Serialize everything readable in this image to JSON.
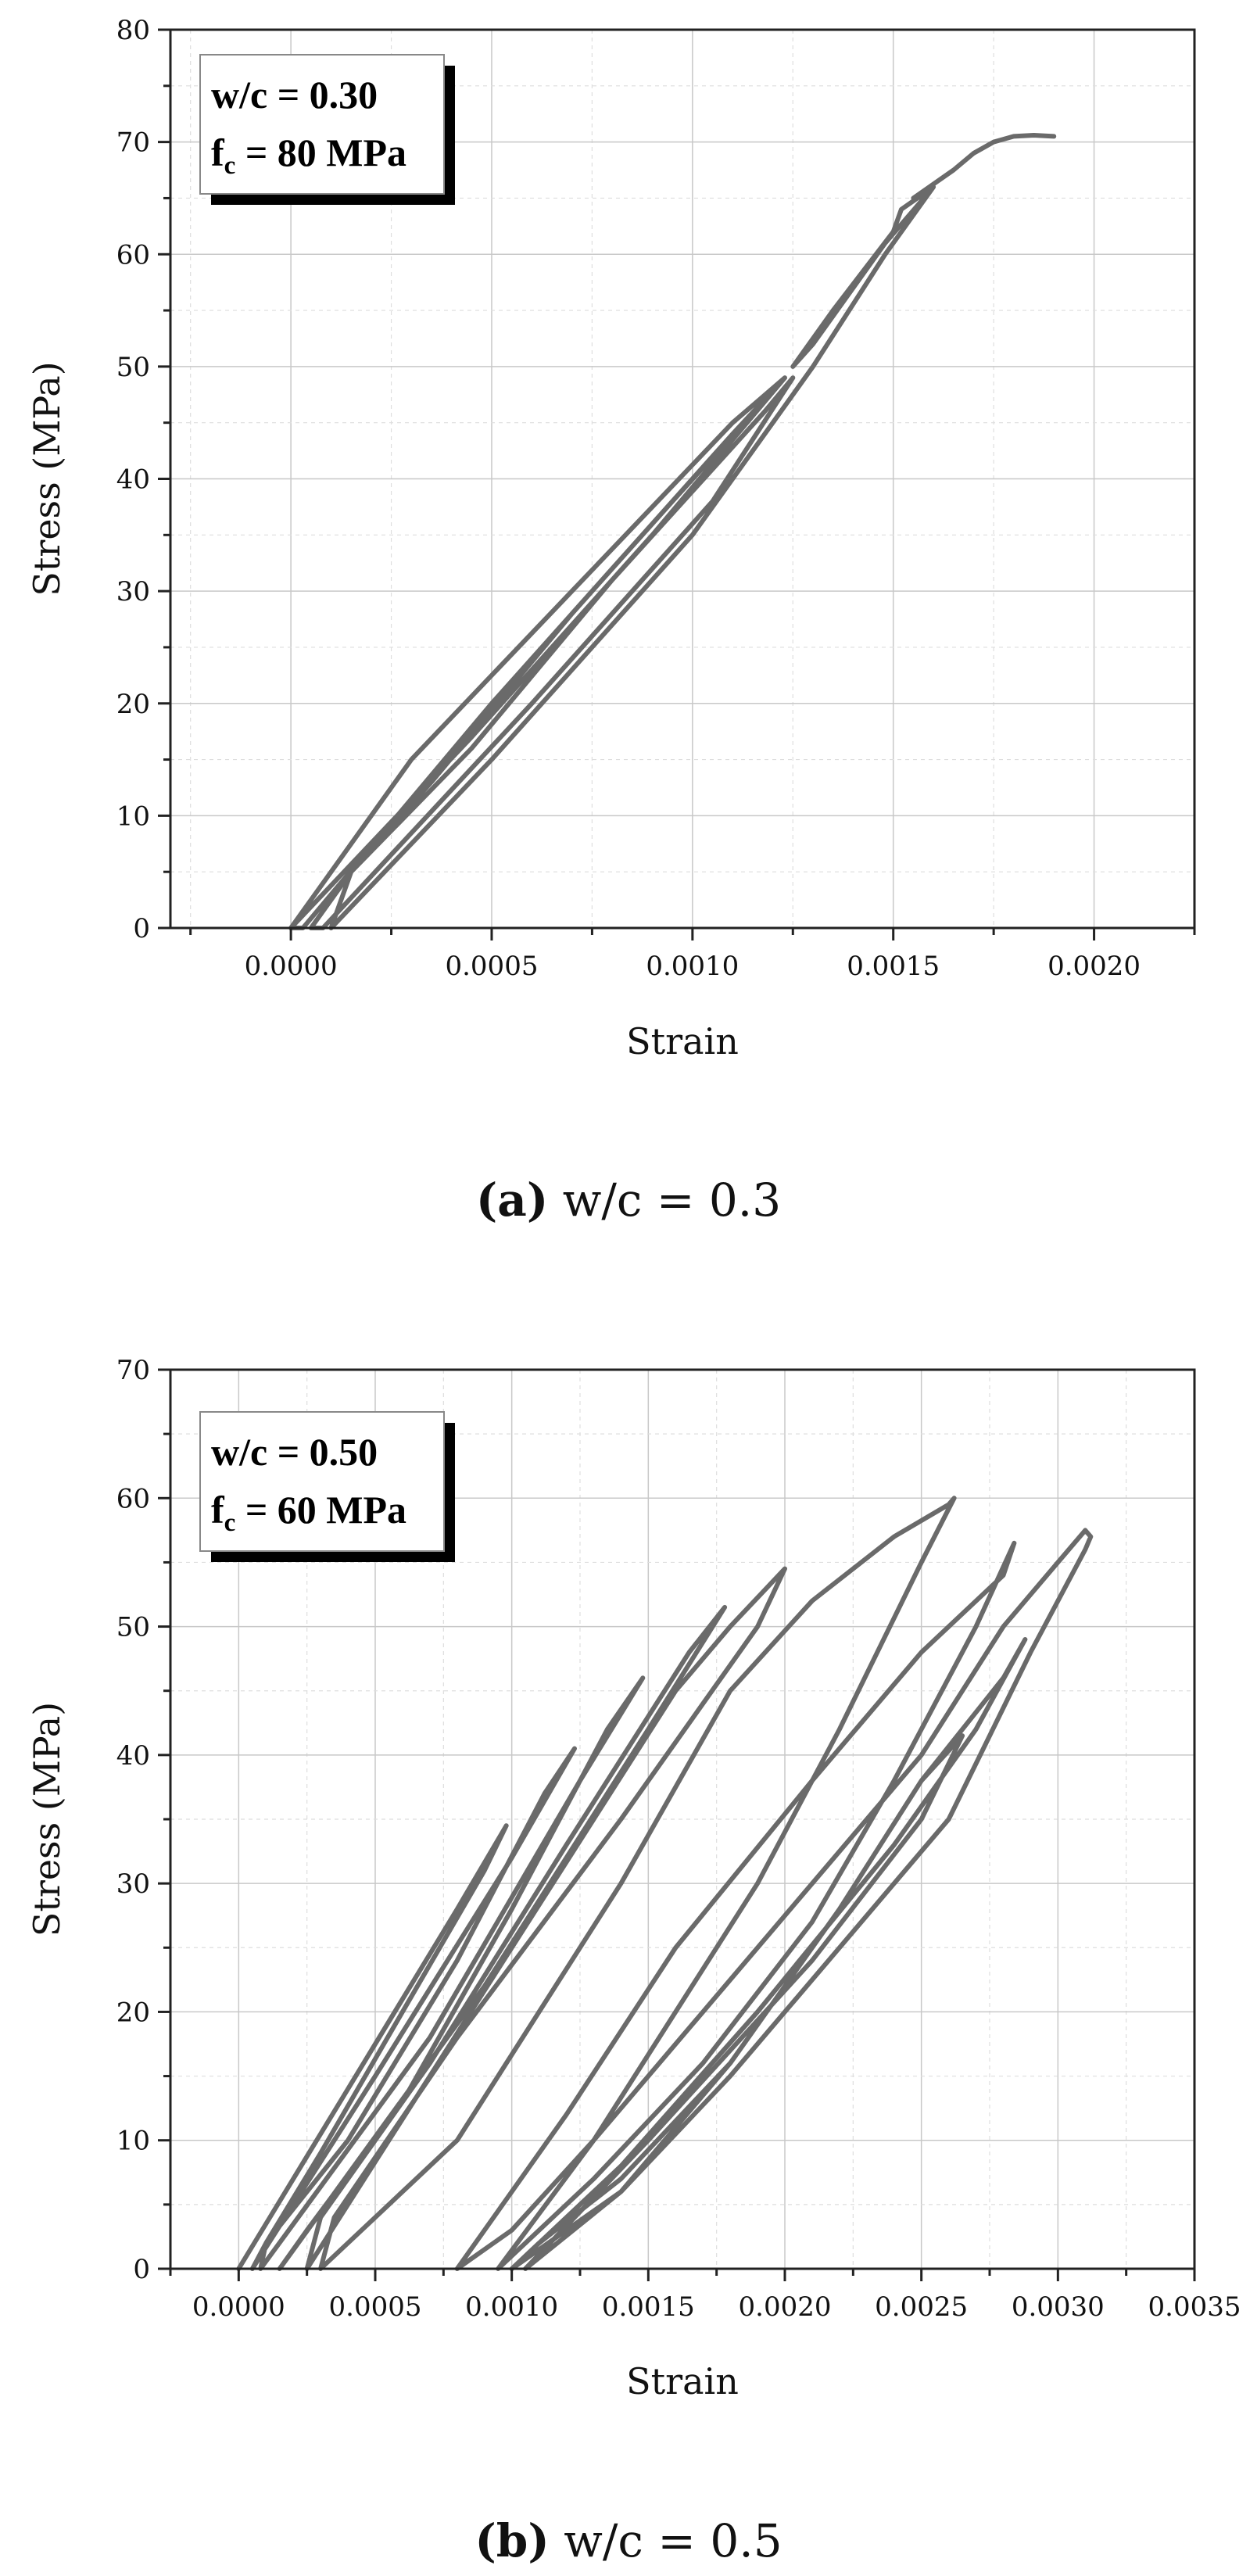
{
  "chart_data": [
    {
      "type": "line",
      "title": "",
      "xlabel": "Strain",
      "ylabel": "Stress (MPa)",
      "xlim": [
        -0.0003,
        0.00225
      ],
      "ylim": [
        0,
        80
      ],
      "xticks": [
        0.0,
        0.0005,
        0.001,
        0.0015,
        0.002
      ],
      "xtick_labels": [
        "0.0000",
        "0.0005",
        "0.0010",
        "0.0015",
        "0.0020"
      ],
      "yticks": [
        0,
        10,
        20,
        30,
        40,
        50,
        60,
        70,
        80
      ],
      "ytick_labels": [
        "0",
        "10",
        "20",
        "30",
        "40",
        "50",
        "60",
        "70",
        "80"
      ],
      "grid": true,
      "annotation": {
        "line1": "w/c = 0.30",
        "line2_base": "f",
        "line2_sub": "c",
        "line2_rest": " = 80 MPa",
        "placement": "top-left"
      },
      "caption": {
        "label": "(a)",
        "text": " w/c = 0.3"
      },
      "series": [
        {
          "x": [
            0.0,
            0.00045,
            0.0009,
            0.00123,
            0.0011,
            0.0007,
            0.0003,
            0.0001,
            0.0,
            3e-05,
            0.0005,
            0.00095,
            0.00123,
            0.0011,
            0.0007,
            0.00035,
            0.00015,
            5e-05,
            8e-05,
            0.0006,
            0.00105,
            0.00125,
            0.00118,
            0.0008,
            0.00045,
            0.00015,
            0.0001,
            0.0005,
            0.001,
            0.0013,
            0.00148,
            0.0016,
            0.00152,
            0.0015,
            0.00135,
            0.00125,
            0.0013,
            0.00148,
            0.0016,
            0.00155,
            0.00165,
            0.0017,
            0.00175,
            0.0018,
            0.00185,
            0.0019
          ],
          "y": [
            0,
            17,
            35,
            49,
            45,
            30,
            15,
            5,
            0,
            0,
            20,
            38,
            49,
            44,
            28,
            13,
            5,
            0,
            0,
            20,
            38,
            49,
            46,
            31,
            16,
            5,
            0,
            15,
            35,
            50,
            60,
            66,
            64,
            62,
            55,
            50,
            52,
            61,
            66,
            65,
            67.5,
            69,
            70,
            70.5,
            70.6,
            70.5
          ]
        }
      ]
    },
    {
      "type": "line",
      "title": "",
      "xlabel": "Strain",
      "ylabel": "Stress (MPa)",
      "xlim": [
        -0.00025,
        0.0035
      ],
      "ylim": [
        0,
        70
      ],
      "xticks": [
        0.0,
        0.0005,
        0.001,
        0.0015,
        0.002,
        0.0025,
        0.003,
        0.0035
      ],
      "xtick_labels": [
        "0.0000",
        "0.0005",
        "0.0010",
        "0.0015",
        "0.0020",
        "0.0025",
        "0.0030",
        "0.0035"
      ],
      "yticks": [
        0,
        10,
        20,
        30,
        40,
        50,
        60,
        70
      ],
      "ytick_labels": [
        "0",
        "10",
        "20",
        "30",
        "40",
        "50",
        "60",
        "70"
      ],
      "grid": true,
      "annotation": {
        "line1": "w/c = 0.50",
        "line2_base": "f",
        "line2_sub": "c",
        "line2_rest": " = 60 MPa",
        "placement": "top-left"
      },
      "caption": {
        "label": "(b)",
        "text": " w/c = 0.5"
      },
      "series": [
        {
          "x": [
            0.0,
            0.0004,
            0.0008,
            0.00098,
            0.0009,
            0.0006,
            0.0003,
            0.0001,
            5e-05,
            0.0005,
            0.001,
            0.00123,
            0.00112,
            0.0008,
            0.0004,
            0.0001,
            8e-05,
            0.0007,
            0.00125,
            0.00148,
            0.00135,
            0.001,
            0.0006,
            0.00025,
            0.00015,
            0.0009,
            0.0015,
            0.00178,
            0.00165,
            0.0012,
            0.0007,
            0.0003,
            0.00025,
            0.001,
            0.0016,
            0.0018,
            0.002,
            0.0019,
            0.0014,
            0.0008,
            0.00035,
            0.0003,
            0.0008,
            0.0014,
            0.0018,
            0.0021,
            0.0024,
            0.0026,
            0.00262,
            0.0025,
            0.0022,
            0.0019,
            0.0016,
            0.0013,
            0.001,
            0.0008,
            0.0012,
            0.0016,
            0.0021,
            0.0025,
            0.0028,
            0.00284,
            0.0027,
            0.0024,
            0.0021,
            0.0017,
            0.0013,
            0.00095,
            0.0013,
            0.0019,
            0.0025,
            0.0028,
            0.003,
            0.0031,
            0.00312,
            0.0031,
            0.0029,
            0.0026,
            0.0022,
            0.0018,
            0.0014,
            0.001,
            0.0014,
            0.0019,
            0.0024,
            0.0027,
            0.00288,
            0.0028,
            0.0025,
            0.0022,
            0.0018,
            0.0014,
            0.00105,
            0.0015,
            0.0021,
            0.0025,
            0.00265,
            0.0025,
            0.0022,
            0.0018,
            0.0014,
            0.0011,
            0.001
          ],
          "y": [
            0,
            14,
            28,
            34.5,
            31,
            20,
            9,
            2,
            0,
            15,
            32,
            40.5,
            37,
            24,
            10,
            2,
            0,
            18,
            38,
            46,
            42,
            28,
            13,
            3,
            0,
            22,
            42,
            51.5,
            48,
            33,
            16,
            4,
            0,
            25,
            45,
            50,
            54.5,
            50,
            35,
            18,
            4,
            0,
            10,
            30,
            45,
            52,
            57,
            59.5,
            60,
            55,
            42,
            30,
            20,
            10,
            3,
            0,
            12,
            25,
            38,
            48,
            54,
            56.5,
            50,
            38,
            27,
            16,
            7,
            0,
            10,
            25,
            40,
            50,
            55,
            57.5,
            57,
            56,
            48,
            35,
            25,
            15,
            6,
            0,
            8,
            20,
            33,
            42,
            49,
            46,
            38,
            28,
            16,
            6,
            0,
            10,
            24,
            35,
            41.5,
            38,
            28,
            16,
            7,
            2,
            0
          ]
        }
      ]
    }
  ]
}
